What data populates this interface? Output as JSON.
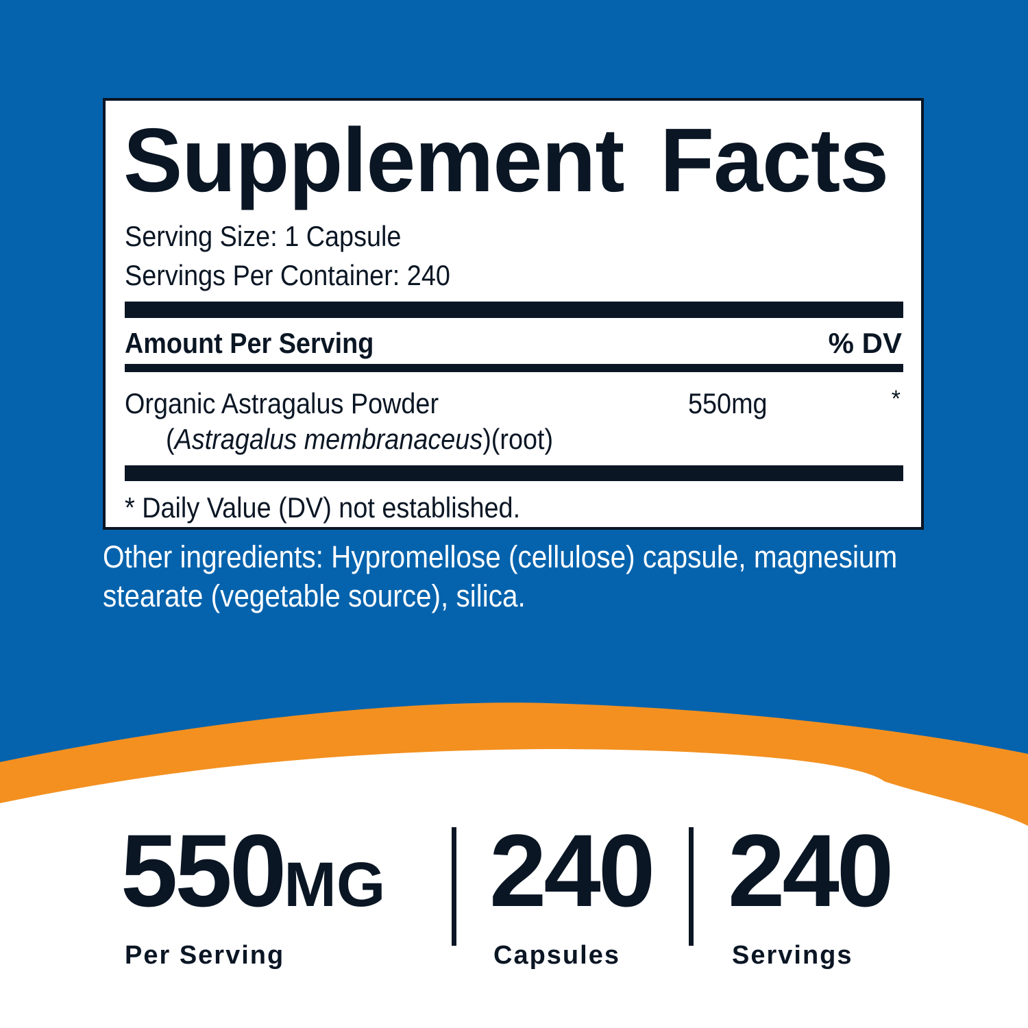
{
  "colors": {
    "blue": "#0563ad",
    "orange": "#f39020",
    "ink": "#0b1624",
    "white": "#ffffff"
  },
  "label": {
    "title": "Supplement Facts",
    "serving_size": "Serving Size: 1 Capsule",
    "servings_per_container": "Servings Per Container: 240",
    "amount_header": "Amount Per Serving",
    "dv_header": "% DV",
    "ingredient": {
      "name": "Organic Astragalus Powder",
      "latin_open": "(",
      "latin": "Astragalus membranaceus",
      "latin_close": ")(root)",
      "amount": "550mg",
      "dv": "*"
    },
    "footnote": "* Daily Value (DV) not established."
  },
  "other_ingredients": "Other ingredients: Hypromellose (cellulose) capsule, magnesium stearate (vegetable source), silica.",
  "stats": [
    {
      "value": "550",
      "unit": "MG",
      "label": "Per Serving"
    },
    {
      "value": "240",
      "unit": "",
      "label": "Capsules"
    },
    {
      "value": "240",
      "unit": "",
      "label": "Servings"
    }
  ]
}
